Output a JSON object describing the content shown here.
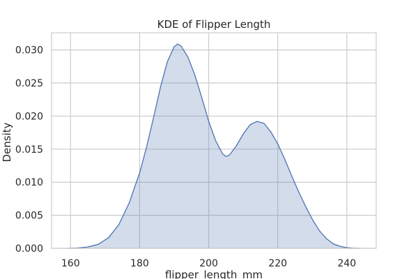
{
  "chart_data": {
    "type": "area",
    "title": "KDE of Flipper Length",
    "xlabel": "flipper_length_mm",
    "ylabel": "Density",
    "xlim": [
      154.5,
      248.5
    ],
    "ylim": [
      0,
      0.0326
    ],
    "xticks": [
      160,
      180,
      200,
      220,
      240
    ],
    "yticks": [
      0.0,
      0.005,
      0.01,
      0.015,
      0.02,
      0.025,
      0.03
    ],
    "ytick_labels": [
      "0.000",
      "0.005",
      "0.010",
      "0.015",
      "0.020",
      "0.025",
      "0.030"
    ],
    "grid": true,
    "line_color": "#4c72b0",
    "fill_color": "#4c72b0",
    "fill_opacity": 0.25,
    "series": [
      {
        "x": [
          159,
          162,
          165,
          168,
          171,
          174,
          177,
          180,
          182,
          184,
          186,
          188,
          190,
          191,
          192,
          194,
          196,
          198,
          200,
          202,
          204,
          205,
          206,
          208,
          210,
          212,
          214,
          216,
          218,
          220,
          222,
          224,
          226,
          228,
          230,
          232,
          234,
          236,
          238,
          240,
          242,
          244
        ],
        "y": [
          0.0,
          5e-05,
          0.0002,
          0.0006,
          0.0016,
          0.0036,
          0.0069,
          0.0114,
          0.0153,
          0.0197,
          0.0243,
          0.0282,
          0.0305,
          0.0309,
          0.0306,
          0.0289,
          0.0262,
          0.0228,
          0.0192,
          0.0163,
          0.0143,
          0.0139,
          0.0141,
          0.0155,
          0.0173,
          0.0187,
          0.0192,
          0.0189,
          0.0176,
          0.0158,
          0.0135,
          0.011,
          0.0086,
          0.0064,
          0.0044,
          0.0027,
          0.0015,
          0.0007,
          0.0003,
          0.0001,
          2e-05,
          0.0
        ]
      }
    ]
  }
}
